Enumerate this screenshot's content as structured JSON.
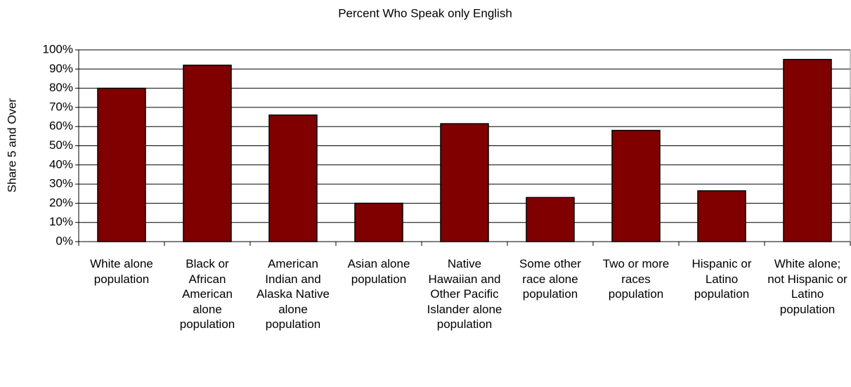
{
  "chart_data": {
    "type": "bar",
    "title": "Percent Who Speak only English",
    "y_label": "Share 5 and Over",
    "categories": [
      "White alone population",
      "Black or African American alone population",
      "American Indian and Alaska Native alone population",
      "Asian alone population",
      "Native Hawaiian and Other Pacific Islander alone population",
      "Some other race alone population",
      "Two or more races population",
      "Hispanic or Latino population",
      "White alone; not Hispanic or Latino population"
    ],
    "values": [
      80,
      92,
      66,
      20,
      61.5,
      23,
      58,
      26.5,
      95
    ],
    "color": "#800000",
    "ylim": [
      0,
      100
    ],
    "yticks": [
      {
        "value": 0,
        "label": "0%"
      },
      {
        "value": 10,
        "label": "10%"
      },
      {
        "value": 20,
        "label": "20%"
      },
      {
        "value": 30,
        "label": "30%"
      },
      {
        "value": 40,
        "label": "40%"
      },
      {
        "value": 50,
        "label": "50%"
      },
      {
        "value": 60,
        "label": "60%"
      },
      {
        "value": 70,
        "label": "70%"
      },
      {
        "value": 80,
        "label": "80%"
      },
      {
        "value": 90,
        "label": "90%"
      },
      {
        "value": 100,
        "label": "100%"
      }
    ],
    "grid": true
  }
}
